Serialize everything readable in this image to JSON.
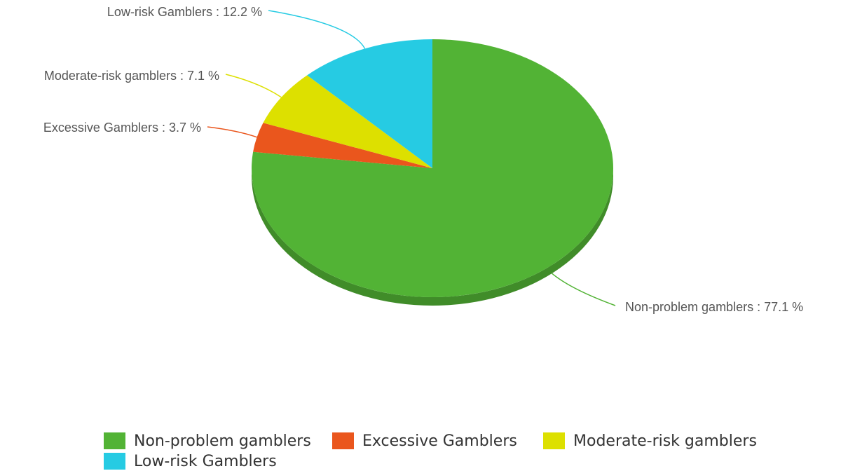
{
  "chart_data": {
    "type": "pie",
    "title": "",
    "series": [
      {
        "name": "Non-problem gamblers",
        "value": 77.1,
        "color": "#52b335",
        "label": "Non-problem gamblers : 77.1 %"
      },
      {
        "name": "Excessive Gamblers",
        "value": 3.7,
        "color": "#ea561d",
        "label": "Excessive Gamblers : 3.7 %"
      },
      {
        "name": "Moderate-risk gamblers",
        "value": 7.1,
        "color": "#dde000",
        "label": "Moderate-risk gamblers : 7.1 %"
      },
      {
        "name": "Low-risk Gamblers",
        "value": 12.2,
        "color": "#26cbe3",
        "label": "Low-risk Gamblers : 12.2 %"
      }
    ],
    "legend": {
      "placement": "bottom"
    },
    "style": "3d"
  }
}
